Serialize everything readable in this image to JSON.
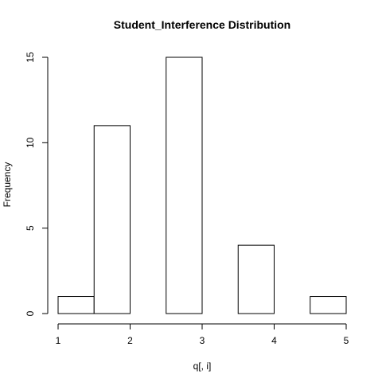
{
  "chart_data": {
    "type": "bar",
    "title": "Student_Interference Distribution",
    "xlabel": "q[, i]",
    "ylabel": "Frequency",
    "bins": [
      {
        "from": 1.0,
        "to": 1.5,
        "count": 1
      },
      {
        "from": 1.5,
        "to": 2.0,
        "count": 11
      },
      {
        "from": 2.0,
        "to": 2.5,
        "count": 0
      },
      {
        "from": 2.5,
        "to": 3.0,
        "count": 15
      },
      {
        "from": 3.0,
        "to": 3.5,
        "count": 0
      },
      {
        "from": 3.5,
        "to": 4.0,
        "count": 4
      },
      {
        "from": 4.0,
        "to": 4.5,
        "count": 0
      },
      {
        "from": 4.5,
        "to": 5.0,
        "count": 1
      }
    ],
    "xlim": [
      1,
      5
    ],
    "ylim": [
      0,
      15
    ],
    "x_ticks": [
      "1",
      "2",
      "3",
      "4",
      "5"
    ],
    "y_ticks": [
      "0",
      "5",
      "10",
      "15"
    ],
    "grid": false,
    "legend": "none",
    "bar_fill": "#ffffff",
    "bar_stroke": "#000000"
  }
}
